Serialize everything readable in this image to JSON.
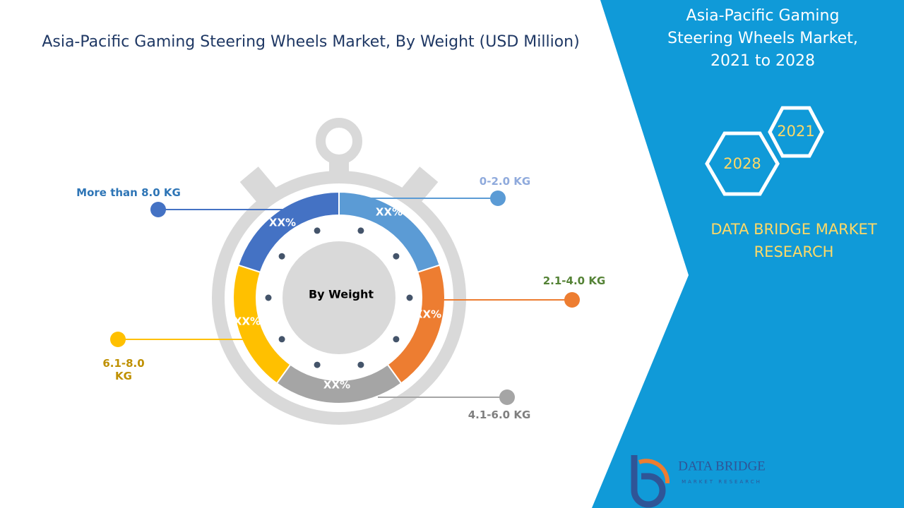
{
  "title": "Asia-Pacific Gaming Steering Wheels Market, By Weight (USD Million)",
  "panel": {
    "title_lines": [
      "Asia-Pacific Gaming",
      "Steering Wheels Market,",
      "2021 to 2028"
    ],
    "years": [
      "2021",
      "2028"
    ],
    "brand_lines": [
      "DATA BRIDGE MARKET",
      "RESEARCH"
    ]
  },
  "donut": {
    "center_label": "By Weight",
    "segments": [
      {
        "label": "0-2.0 KG",
        "value_label": "XX%",
        "color": "#5b9bd5",
        "label_color": "#8faadc"
      },
      {
        "label": "2.1-4.0 KG",
        "value_label": "XX%",
        "color": "#ed7d31",
        "label_color": "#548235"
      },
      {
        "label": "4.1-6.0 KG",
        "value_label": "XX%",
        "color": "#a5a5a5",
        "label_color": "#7f7f7f"
      },
      {
        "label": "6.1-8.0 KG",
        "value_label": "XX%",
        "color": "#ffc000",
        "label_color": "#bf9000"
      },
      {
        "label": "More than 8.0 KG",
        "value_label": "XX%",
        "color": "#4472c4",
        "label_color": "#2e75b6"
      }
    ]
  },
  "logo": {
    "name": "DATA BRIDGE",
    "tagline": "MARKET RESEARCH"
  }
}
